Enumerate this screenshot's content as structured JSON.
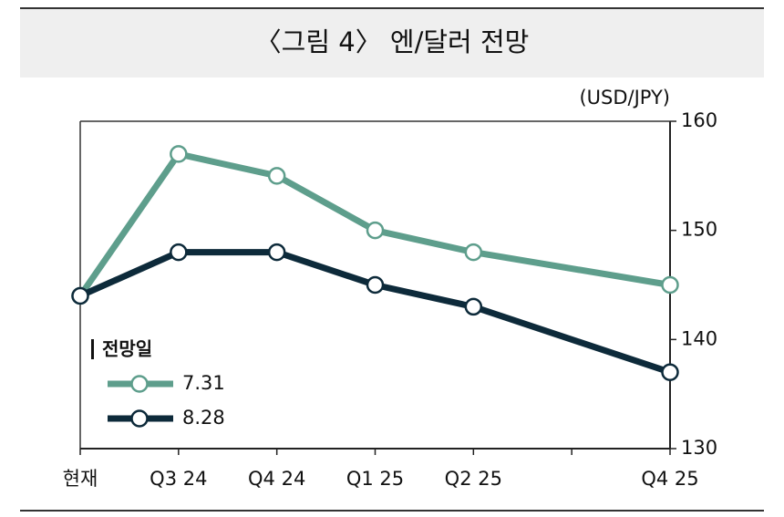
{
  "chart_data": {
    "type": "line",
    "title": "〈그림 4〉 엔/달러 전망",
    "y_axis_label": "(USD/JPY)",
    "legend_title": "전망일",
    "categories": [
      "현재",
      "Q3 24",
      "Q4 24",
      "Q1 25",
      "Q2 25",
      null,
      "Q4 25"
    ],
    "series": [
      {
        "name": "7.31",
        "color": "#5e9e8c",
        "values": [
          144,
          157,
          155,
          150,
          148,
          null,
          145
        ]
      },
      {
        "name": "8.28",
        "color": "#0d2a3a",
        "values": [
          144,
          148,
          148,
          145,
          143,
          null,
          137
        ]
      }
    ],
    "ylim": [
      130,
      160
    ],
    "yticks": [
      130,
      140,
      150,
      160
    ],
    "y_axis_side": "right",
    "grid": false
  }
}
